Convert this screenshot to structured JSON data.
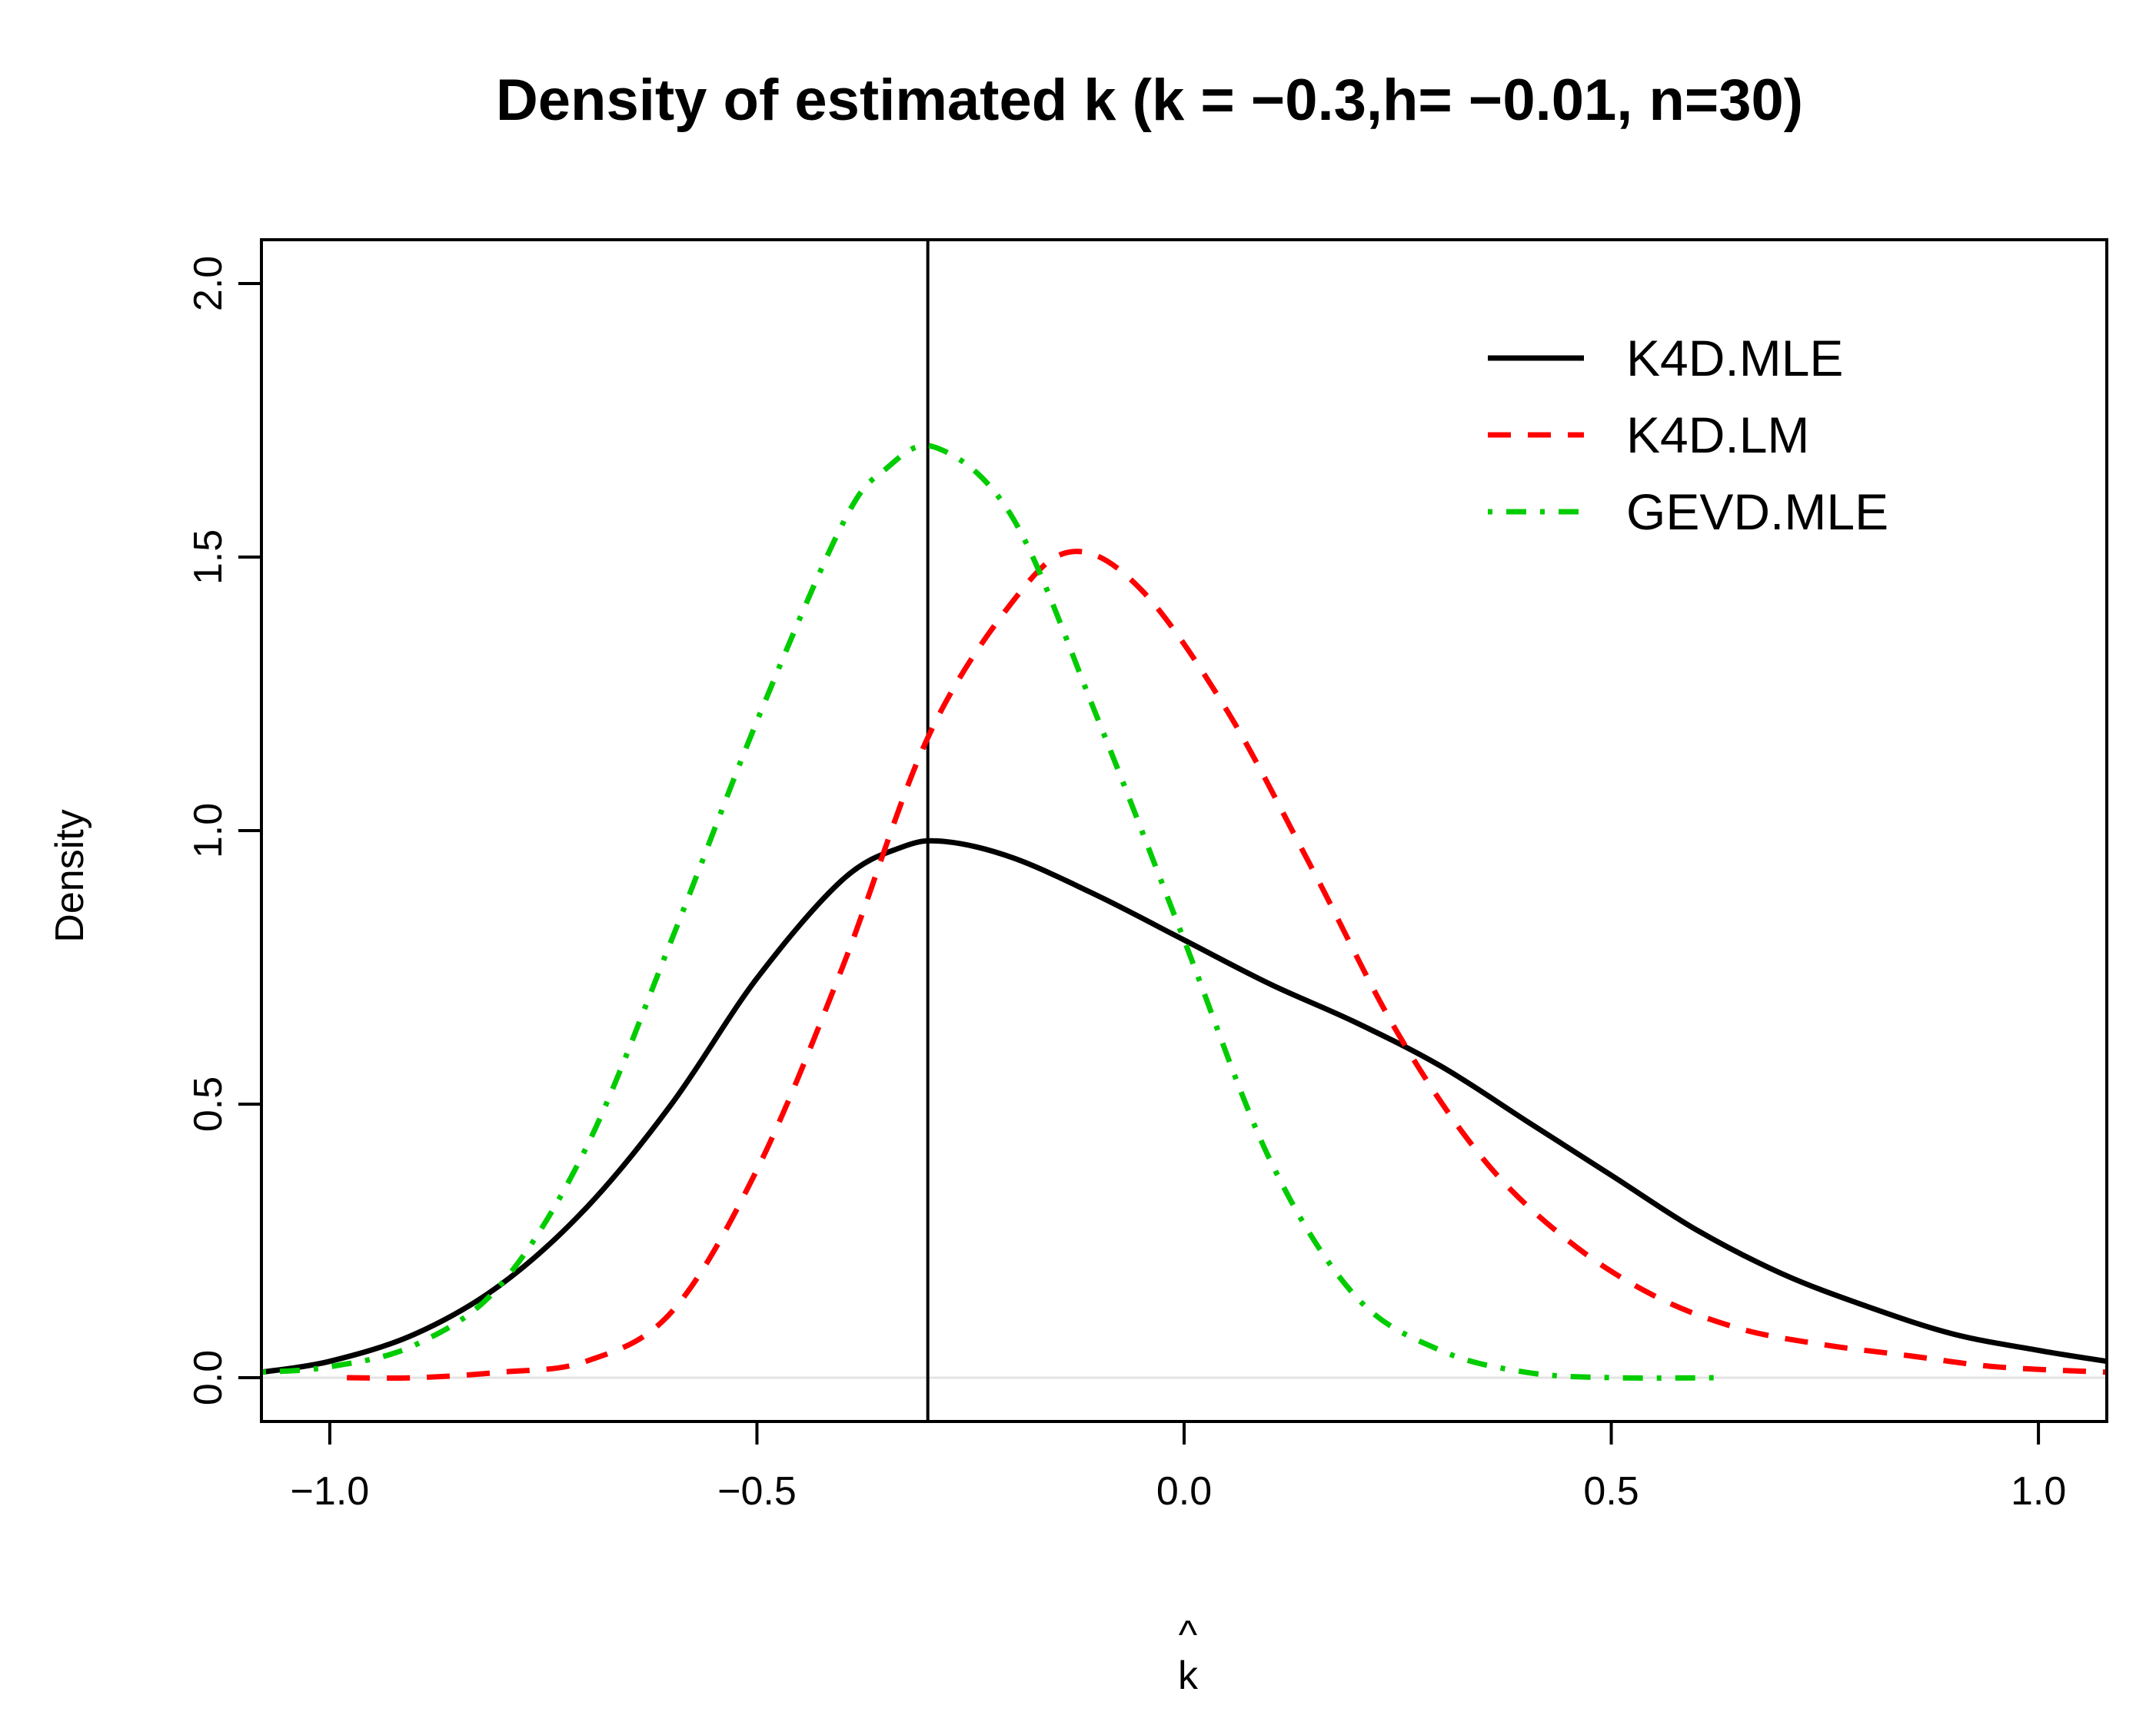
{
  "chart_data": {
    "type": "line",
    "title": "Density of estimated k (k = −0.3,h= −0.01, n=30)",
    "xlabel_hat": "^",
    "xlabel": "k",
    "ylabel": "Density",
    "xlim": [
      -1.08,
      1.08
    ],
    "ylim": [
      -0.08,
      2.08
    ],
    "x_ticks": [
      -1.0,
      -0.5,
      0.0,
      0.5,
      1.0
    ],
    "x_tick_labels": [
      "−1.0",
      "−0.5",
      "0.0",
      "0.5",
      "1.0"
    ],
    "y_ticks": [
      0.0,
      0.5,
      1.0,
      1.5,
      2.0
    ],
    "y_tick_labels": [
      "0.0",
      "0.5",
      "1.0",
      "1.5",
      "2.0"
    ],
    "reference_line_x": -0.3,
    "zero_line_y": 0,
    "legend_position": "top-right",
    "series": [
      {
        "name": "K4D.MLE",
        "color": "#000000",
        "style": "solid",
        "x": [
          -1.08,
          -1.0,
          -0.9,
          -0.8,
          -0.7,
          -0.6,
          -0.5,
          -0.4,
          -0.33,
          -0.28,
          -0.2,
          -0.1,
          0.0,
          0.1,
          0.2,
          0.3,
          0.4,
          0.5,
          0.6,
          0.7,
          0.8,
          0.9,
          1.0,
          1.08
        ],
        "y": [
          0.01,
          0.03,
          0.08,
          0.17,
          0.31,
          0.5,
          0.73,
          0.91,
          0.97,
          0.98,
          0.95,
          0.88,
          0.8,
          0.72,
          0.65,
          0.57,
          0.47,
          0.37,
          0.27,
          0.19,
          0.13,
          0.08,
          0.05,
          0.03
        ]
      },
      {
        "name": "K4D.LM",
        "color": "#ff0000",
        "style": "dashed",
        "x": [
          -0.98,
          -0.9,
          -0.8,
          -0.7,
          -0.6,
          -0.5,
          -0.4,
          -0.3,
          -0.2,
          -0.13,
          -0.05,
          0.05,
          0.15,
          0.25,
          0.35,
          0.45,
          0.55,
          0.65,
          0.75,
          0.85,
          0.95,
          1.08
        ],
        "y": [
          0.0,
          0.0,
          0.01,
          0.03,
          0.12,
          0.38,
          0.75,
          1.17,
          1.42,
          1.51,
          1.44,
          1.22,
          0.93,
          0.63,
          0.4,
          0.25,
          0.15,
          0.09,
          0.06,
          0.04,
          0.02,
          0.01
        ]
      },
      {
        "name": "GEVD.MLE",
        "color": "#00cc00",
        "style": "dotdash",
        "x": [
          -1.08,
          -1.0,
          -0.9,
          -0.8,
          -0.7,
          -0.6,
          -0.5,
          -0.4,
          -0.35,
          -0.29,
          -0.2,
          -0.1,
          0.0,
          0.1,
          0.2,
          0.3,
          0.4,
          0.5,
          0.63
        ],
        "y": [
          0.01,
          0.02,
          0.06,
          0.17,
          0.42,
          0.8,
          1.2,
          1.56,
          1.66,
          1.7,
          1.57,
          1.2,
          0.8,
          0.4,
          0.15,
          0.05,
          0.01,
          0.0,
          0.0
        ]
      }
    ]
  }
}
